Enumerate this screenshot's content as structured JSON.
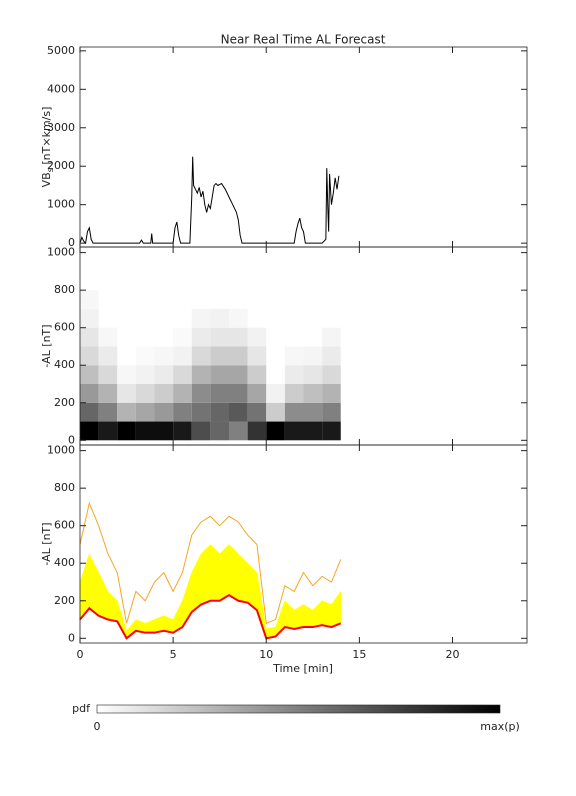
{
  "chart_data": [
    {
      "type": "line",
      "title": "Near Real Time AL Forecast",
      "ylabel": {
        "main": "VB",
        "sub": "s",
        "unit": " [nT×km/s]"
      },
      "x": [
        0,
        0.1,
        0.2,
        0.3,
        0.4,
        0.5,
        0.6,
        0.7,
        0.8,
        0.9,
        1.0,
        3.2,
        3.3,
        3.4,
        3.8,
        3.85,
        3.9,
        5.0,
        5.1,
        5.2,
        5.3,
        5.4,
        5.6,
        5.9,
        6.0,
        6.05,
        6.1,
        6.2,
        6.3,
        6.4,
        6.5,
        6.6,
        6.7,
        6.8,
        6.9,
        7.0,
        7.1,
        7.2,
        7.3,
        7.4,
        7.6,
        7.8,
        8.0,
        8.2,
        8.4,
        8.5,
        8.6,
        8.7,
        9.0,
        11.5,
        11.6,
        11.7,
        11.8,
        11.9,
        12.0,
        12.1,
        12.2,
        13.0,
        13.2,
        13.25,
        13.3,
        13.35,
        13.4,
        13.5,
        13.6,
        13.7,
        13.8,
        13.9
      ],
      "values": [
        0,
        150,
        50,
        0,
        300,
        400,
        100,
        0,
        0,
        0,
        0,
        0,
        80,
        0,
        0,
        250,
        0,
        0,
        400,
        550,
        200,
        0,
        0,
        0,
        1200,
        2250,
        1500,
        1400,
        1300,
        1450,
        1200,
        1350,
        1000,
        800,
        1000,
        900,
        1200,
        1500,
        1550,
        1500,
        1550,
        1400,
        1200,
        1000,
        800,
        600,
        200,
        0,
        0,
        0,
        300,
        500,
        650,
        400,
        300,
        0,
        0,
        0,
        100,
        1950,
        1000,
        300,
        1800,
        1000,
        1300,
        1700,
        1400,
        1750
      ],
      "color": "#000000",
      "xlim": [
        0,
        24
      ],
      "xticks": [
        0,
        5,
        10,
        15,
        20
      ],
      "ylim": [
        -100,
        5100
      ],
      "yticks": [
        0,
        1000,
        2000,
        3000,
        4000,
        5000
      ]
    },
    {
      "type": "heatmap",
      "ylabel": "-AL [nT]",
      "x_edges": [
        0,
        1,
        2,
        3,
        4,
        5,
        6,
        7,
        8,
        9,
        10,
        11,
        12,
        13,
        14
      ],
      "y_edges": [
        0,
        100,
        200,
        300,
        400,
        500,
        600,
        700,
        800
      ],
      "z": [
        [
          1.0,
          0.6,
          0.4,
          0.25,
          0.15,
          0.1,
          0.05,
          0.03
        ],
        [
          0.9,
          0.5,
          0.3,
          0.15,
          0.08,
          0.03,
          0,
          0
        ],
        [
          1.0,
          0.3,
          0.1,
          0.03,
          0,
          0,
          0,
          0
        ],
        [
          0.95,
          0.35,
          0.15,
          0.05,
          0.02,
          0,
          0,
          0
        ],
        [
          0.95,
          0.4,
          0.2,
          0.08,
          0.03,
          0,
          0,
          0
        ],
        [
          0.9,
          0.5,
          0.3,
          0.15,
          0.05,
          0.02,
          0,
          0
        ],
        [
          0.7,
          0.55,
          0.45,
          0.3,
          0.15,
          0.08,
          0.04,
          0
        ],
        [
          0.6,
          0.6,
          0.5,
          0.35,
          0.2,
          0.1,
          0.05,
          0
        ],
        [
          0.5,
          0.65,
          0.5,
          0.35,
          0.2,
          0.1,
          0.03,
          0
        ],
        [
          0.8,
          0.55,
          0.35,
          0.2,
          0.1,
          0.05,
          0,
          0
        ],
        [
          1.0,
          0.2,
          0.05,
          0,
          0,
          0,
          0,
          0
        ],
        [
          0.9,
          0.45,
          0.2,
          0.08,
          0.03,
          0,
          0,
          0
        ],
        [
          0.9,
          0.45,
          0.25,
          0.1,
          0.04,
          0,
          0,
          0
        ],
        [
          0.9,
          0.5,
          0.3,
          0.15,
          0.08,
          0.04,
          0,
          0
        ]
      ],
      "colorbar": {
        "label": "pdf",
        "min_label": "0",
        "max_label": "max(p)"
      },
      "xlim": [
        0,
        24
      ],
      "xticks": [
        0,
        5,
        10,
        15,
        20
      ],
      "ylim": [
        -25,
        1030
      ],
      "yticks": [
        0,
        200,
        400,
        600,
        800,
        1000
      ]
    },
    {
      "type": "line",
      "ylabel": "-AL [nT]",
      "xlabel": "Time [min]",
      "show_xtick_labels": true,
      "x": [
        0,
        0.5,
        1,
        1.5,
        2,
        2.5,
        3,
        3.5,
        4,
        4.5,
        5,
        5.5,
        6,
        6.5,
        7,
        7.5,
        8,
        8.5,
        9,
        9.5,
        10,
        10.5,
        11,
        11.5,
        12,
        12.5,
        13,
        13.5,
        14
      ],
      "series": [
        {
          "color": "#f5a623",
          "values": [
            500,
            720,
            600,
            450,
            350,
            80,
            250,
            200,
            300,
            350,
            250,
            350,
            550,
            620,
            650,
            600,
            650,
            620,
            550,
            500,
            80,
            100,
            280,
            250,
            350,
            280,
            330,
            300,
            420
          ]
        },
        {
          "color": "#ffff00",
          "fill": true,
          "values": [
            300,
            450,
            350,
            250,
            200,
            40,
            100,
            80,
            100,
            120,
            100,
            200,
            350,
            450,
            500,
            450,
            500,
            450,
            400,
            350,
            50,
            60,
            200,
            150,
            180,
            150,
            200,
            180,
            250
          ]
        },
        {
          "color": "#ff0000",
          "values": [
            100,
            160,
            120,
            100,
            90,
            0,
            40,
            30,
            30,
            40,
            30,
            60,
            140,
            180,
            200,
            200,
            230,
            200,
            190,
            150,
            0,
            10,
            60,
            50,
            60,
            60,
            70,
            60,
            80
          ]
        }
      ],
      "xlim": [
        0,
        24
      ],
      "xticks": [
        0,
        5,
        10,
        15,
        20
      ],
      "ylim": [
        -25,
        1030
      ],
      "yticks": [
        0,
        200,
        400,
        600,
        800,
        1000
      ]
    }
  ]
}
